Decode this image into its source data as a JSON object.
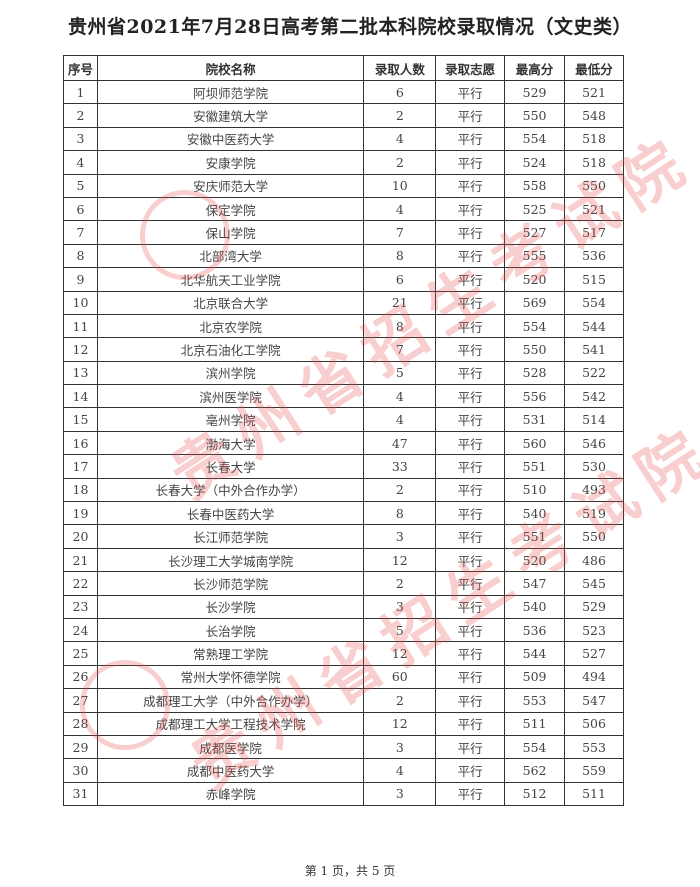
{
  "title": "贵州省2021年7月28日高考第二批本科院校录取情况（文史类）",
  "columns": [
    "序号",
    "院校名称",
    "录取人数",
    "录取志愿",
    "最高分",
    "最低分"
  ],
  "rows": [
    [
      "1",
      "阿坝师范学院",
      "6",
      "平行",
      "529",
      "521"
    ],
    [
      "2",
      "安徽建筑大学",
      "2",
      "平行",
      "550",
      "548"
    ],
    [
      "3",
      "安徽中医药大学",
      "4",
      "平行",
      "554",
      "518"
    ],
    [
      "4",
      "安康学院",
      "2",
      "平行",
      "524",
      "518"
    ],
    [
      "5",
      "安庆师范大学",
      "10",
      "平行",
      "558",
      "550"
    ],
    [
      "6",
      "保定学院",
      "4",
      "平行",
      "525",
      "521"
    ],
    [
      "7",
      "保山学院",
      "7",
      "平行",
      "527",
      "517"
    ],
    [
      "8",
      "北部湾大学",
      "8",
      "平行",
      "555",
      "536"
    ],
    [
      "9",
      "北华航天工业学院",
      "6",
      "平行",
      "520",
      "515"
    ],
    [
      "10",
      "北京联合大学",
      "21",
      "平行",
      "569",
      "554"
    ],
    [
      "11",
      "北京农学院",
      "8",
      "平行",
      "554",
      "544"
    ],
    [
      "12",
      "北京石油化工学院",
      "7",
      "平行",
      "550",
      "541"
    ],
    [
      "13",
      "滨州学院",
      "5",
      "平行",
      "528",
      "522"
    ],
    [
      "14",
      "滨州医学院",
      "4",
      "平行",
      "556",
      "542"
    ],
    [
      "15",
      "亳州学院",
      "4",
      "平行",
      "531",
      "514"
    ],
    [
      "16",
      "渤海大学",
      "47",
      "平行",
      "560",
      "546"
    ],
    [
      "17",
      "长春大学",
      "33",
      "平行",
      "551",
      "530"
    ],
    [
      "18",
      "长春大学（中外合作办学）",
      "2",
      "平行",
      "510",
      "493"
    ],
    [
      "19",
      "长春中医药大学",
      "8",
      "平行",
      "540",
      "519"
    ],
    [
      "20",
      "长江师范学院",
      "3",
      "平行",
      "551",
      "550"
    ],
    [
      "21",
      "长沙理工大学城南学院",
      "12",
      "平行",
      "520",
      "486"
    ],
    [
      "22",
      "长沙师范学院",
      "2",
      "平行",
      "547",
      "545"
    ],
    [
      "23",
      "长沙学院",
      "3",
      "平行",
      "540",
      "529"
    ],
    [
      "24",
      "长治学院",
      "5",
      "平行",
      "536",
      "523"
    ],
    [
      "25",
      "常熟理工学院",
      "12",
      "平行",
      "544",
      "527"
    ],
    [
      "26",
      "常州大学怀德学院",
      "60",
      "平行",
      "509",
      "494"
    ],
    [
      "27",
      "成都理工大学（中外合作办学）",
      "2",
      "平行",
      "553",
      "547"
    ],
    [
      "28",
      "成都理工大学工程技术学院",
      "12",
      "平行",
      "511",
      "506"
    ],
    [
      "29",
      "成都医学院",
      "3",
      "平行",
      "554",
      "553"
    ],
    [
      "30",
      "成都中医药大学",
      "4",
      "平行",
      "562",
      "559"
    ],
    [
      "31",
      "赤峰学院",
      "3",
      "平行",
      "512",
      "511"
    ]
  ],
  "footer": "第 1 页，共 5 页",
  "watermark": "贵州省招生考试院",
  "watermark_color": "#e65050"
}
